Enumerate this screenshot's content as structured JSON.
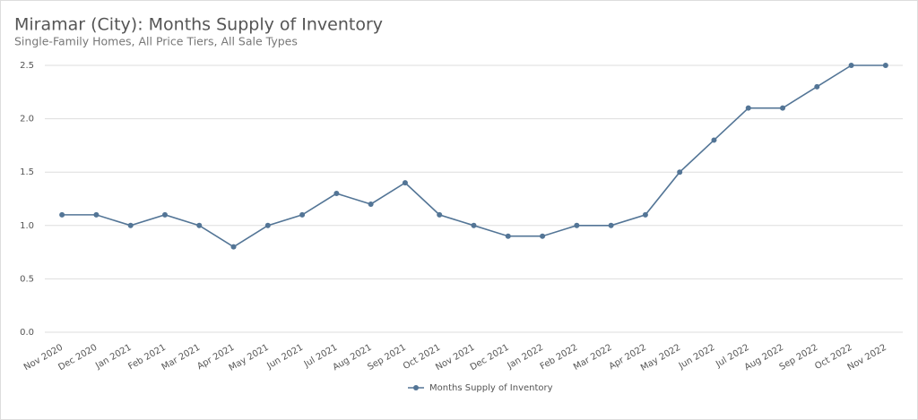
{
  "chart_data": {
    "type": "line",
    "title": "Miramar (City): Months Supply of Inventory",
    "subtitle": "Single-Family Homes, All Price Tiers, All Sale Types",
    "categories": [
      "Nov 2020",
      "Dec 2020",
      "Jan 2021",
      "Feb 2021",
      "Mar 2021",
      "Apr 2021",
      "May 2021",
      "Jun 2021",
      "Jul 2021",
      "Aug 2021",
      "Sep 2021",
      "Oct 2021",
      "Nov 2021",
      "Dec 2021",
      "Jan 2022",
      "Feb 2022",
      "Mar 2022",
      "Apr 2022",
      "May 2022",
      "Jun 2022",
      "Jul 2022",
      "Aug 2022",
      "Sep 2022",
      "Oct 2022",
      "Nov 2022"
    ],
    "series": [
      {
        "name": "Months Supply of Inventory",
        "color": "#537596",
        "values": [
          1.1,
          1.1,
          1.0,
          1.1,
          1.0,
          0.8,
          1.0,
          1.1,
          1.3,
          1.2,
          1.4,
          1.1,
          1.0,
          0.9,
          0.9,
          1.0,
          1.0,
          1.1,
          1.5,
          1.8,
          2.1,
          2.1,
          2.3,
          2.5,
          2.5
        ]
      }
    ],
    "ylim": [
      0,
      2.5
    ],
    "yticks": [
      {
        "value": 0,
        "label": "0.0"
      },
      0.5,
      {
        "value": 1,
        "label": "1.0"
      },
      1.5,
      {
        "value": 2,
        "label": "2.0"
      },
      2.5
    ],
    "grid": true,
    "legend": "bottom"
  }
}
